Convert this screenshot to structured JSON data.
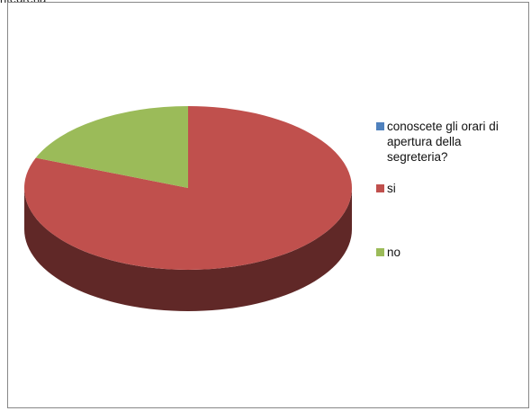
{
  "clipped_top_text": "ntegreria",
  "chart_data": {
    "type": "pie",
    "style": "3d",
    "title": "",
    "series_name": "conoscete gli orari di apertura della segreteria?",
    "categories": [
      "si",
      "no"
    ],
    "values": [
      81,
      19
    ],
    "colors": {
      "series": "#4f81bd",
      "si": "#c0504d",
      "no": "#9bbb59"
    },
    "legend_position": "right"
  },
  "legend": {
    "items": [
      {
        "label": "conoscete gli orari di apertura della segreteria?",
        "color": "#4f81bd"
      },
      {
        "label": "si",
        "color": "#c0504d"
      },
      {
        "label": "no",
        "color": "#9bbb59"
      }
    ]
  }
}
